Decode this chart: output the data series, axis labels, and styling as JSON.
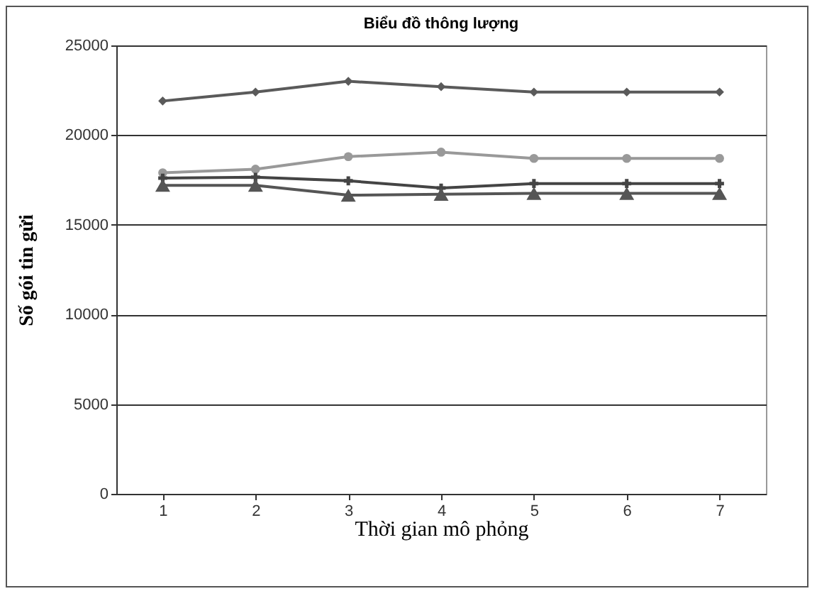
{
  "chart_data": {
    "type": "line",
    "title": "Biểu đồ thông lượng",
    "xlabel": "Thời gian mô phỏng",
    "ylabel": "Số gói tin gửi",
    "categories": [
      "1",
      "2",
      "3",
      "4",
      "5",
      "6",
      "7"
    ],
    "series": [
      {
        "color": "#5a5a5a",
        "marker": "diamond",
        "values": [
          21900,
          22400,
          23000,
          22700,
          22400,
          22400,
          22400
        ]
      },
      {
        "color": "#999999",
        "marker": "circle",
        "values": [
          17900,
          18100,
          18800,
          19050,
          18700,
          18700,
          18700
        ]
      },
      {
        "color": "#444444",
        "marker": "cross",
        "values": [
          17600,
          17650,
          17450,
          17050,
          17300,
          17300,
          17300
        ]
      },
      {
        "color": "#555555",
        "marker": "triangle",
        "values": [
          17200,
          17200,
          16650,
          16700,
          16750,
          16750,
          16750
        ]
      }
    ],
    "ylim": [
      0,
      25000
    ],
    "yticks": [
      0,
      5000,
      10000,
      15000,
      20000,
      25000
    ],
    "grid": "y"
  }
}
